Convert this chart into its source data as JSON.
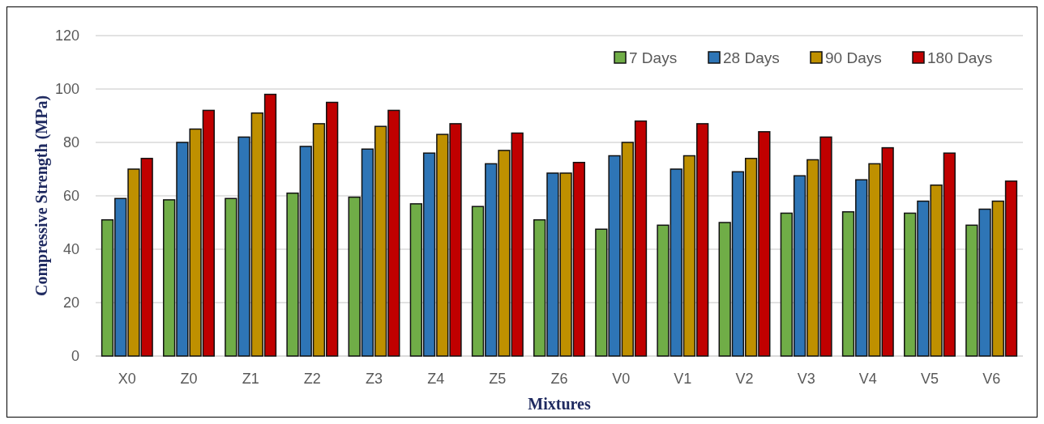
{
  "chart_data": {
    "type": "bar",
    "xlabel": "Mixtures",
    "ylabel": "Compressive Strength (MPa)",
    "categories": [
      "X0",
      "Z0",
      "Z1",
      "Z2",
      "Z3",
      "Z4",
      "Z5",
      "Z6",
      "V0",
      "V1",
      "V2",
      "V3",
      "V4",
      "V5",
      "V6"
    ],
    "series": [
      {
        "name": "7 Days",
        "color": "#70ad47",
        "values": [
          51,
          58.5,
          59,
          61,
          59.5,
          57,
          56,
          51,
          47.5,
          49,
          50,
          53.5,
          54,
          53.5,
          49
        ]
      },
      {
        "name": "28 Days",
        "color": "#2e75b6",
        "values": [
          59,
          80,
          82,
          78.5,
          77.5,
          76,
          72,
          68.5,
          75,
          70,
          69,
          67.5,
          66,
          58,
          55
        ]
      },
      {
        "name": "90 Days",
        "color": "#bf9000",
        "values": [
          70,
          85,
          91,
          87,
          86,
          83,
          77,
          68.5,
          80,
          75,
          74,
          73.5,
          72,
          64,
          58
        ]
      },
      {
        "name": "180 Days",
        "color": "#c00000",
        "values": [
          74,
          92,
          98,
          95,
          92,
          87,
          83.5,
          72.5,
          88,
          87,
          84,
          82,
          78,
          76,
          65.5
        ]
      }
    ],
    "ylim": [
      0,
      120
    ],
    "yticks": [
      0,
      20,
      40,
      60,
      80,
      100,
      120
    ],
    "grid": "y",
    "legend": "top right"
  }
}
